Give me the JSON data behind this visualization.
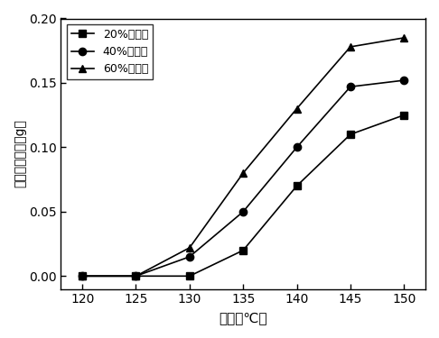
{
  "x": [
    120,
    125,
    130,
    135,
    140,
    145,
    150
  ],
  "series": [
    {
      "label": "20%离子液",
      "marker": "s",
      "values": [
        0.0,
        0.0,
        0.0,
        0.02,
        0.07,
        0.11,
        0.125
      ]
    },
    {
      "label": "40%离子液",
      "marker": "o",
      "values": [
        0.0,
        0.0,
        0.015,
        0.05,
        0.1,
        0.147,
        0.152
      ]
    },
    {
      "label": "60%离子液",
      "marker": "^",
      "values": [
        0.0,
        0.0,
        0.022,
        0.08,
        0.13,
        0.178,
        0.185
      ]
    }
  ],
  "line_color": "#000000",
  "xlabel": "温度（℃）",
  "ylabel": "析出的硫含量（g）",
  "xlim": [
    118,
    152
  ],
  "ylim": [
    -0.01,
    0.2
  ],
  "xticks": [
    120,
    125,
    130,
    135,
    140,
    145,
    150
  ],
  "yticks": [
    0.0,
    0.05,
    0.1,
    0.15,
    0.2
  ],
  "legend_loc": "upper left",
  "figsize": [
    4.86,
    3.75
  ],
  "dpi": 100
}
